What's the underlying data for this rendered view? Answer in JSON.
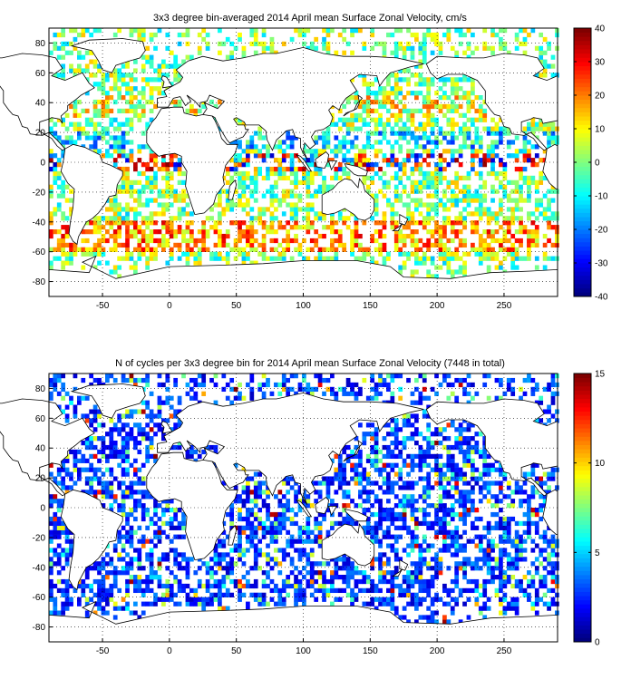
{
  "panels": [
    {
      "title": "3x3 degree bin-averaged 2014 April mean Surface Zonal Velocity, cm/s",
      "x_ticks": [
        "-50",
        "0",
        "50",
        "100",
        "150",
        "200",
        "250"
      ],
      "y_ticks": [
        "80",
        "60",
        "40",
        "20",
        "0",
        "-20",
        "-40",
        "-60",
        "-80"
      ],
      "colorbar_ticks": [
        "40",
        "30",
        "20",
        "10",
        "0",
        "-10",
        "-20",
        "-30",
        "-40"
      ],
      "colorbar_range": [
        -40,
        40
      ],
      "colormap": "jet",
      "field": "velocity"
    },
    {
      "title": "N of cycles per 3x3 degree bin for 2014 April mean Surface Zonal Velocity (7448 in total)",
      "x_ticks": [
        "-50",
        "0",
        "50",
        "100",
        "150",
        "200",
        "250"
      ],
      "y_ticks": [
        "80",
        "60",
        "40",
        "20",
        "0",
        "-20",
        "-40",
        "-60",
        "-80"
      ],
      "colorbar_ticks": [
        "15",
        "10",
        "5",
        "0"
      ],
      "colorbar_range": [
        0,
        15
      ],
      "colormap": "jet",
      "field": "counts"
    }
  ],
  "map": {
    "lon_range": [
      -90,
      290
    ],
    "lat_range": [
      -90,
      90
    ],
    "bin_size_deg": 3,
    "grid": "dotted",
    "coastline_color": "#000000"
  }
}
